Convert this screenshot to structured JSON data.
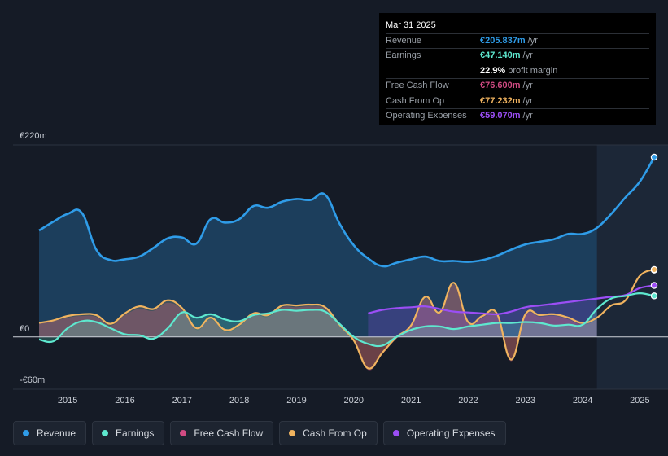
{
  "tooltip": {
    "date": "Mar 31 2025",
    "rows": [
      {
        "label": "Revenue",
        "value": "€205.837m",
        "unit": "/yr",
        "color": "#2f9ce8"
      },
      {
        "label": "Earnings",
        "value": "€47.140m",
        "unit": "/yr",
        "color": "#5ee8cf"
      },
      {
        "label": "",
        "value": "22.9%",
        "unit": "profit margin",
        "color": "#ffffff"
      },
      {
        "label": "Free Cash Flow",
        "value": "€76.600m",
        "unit": "/yr",
        "color": "#d14b83"
      },
      {
        "label": "Cash From Op",
        "value": "€77.232m",
        "unit": "/yr",
        "color": "#f0b35f"
      },
      {
        "label": "Operating Expenses",
        "value": "€59.070m",
        "unit": "/yr",
        "color": "#9b4ef5"
      }
    ]
  },
  "legend": [
    {
      "label": "Revenue",
      "color": "#2f9ce8"
    },
    {
      "label": "Earnings",
      "color": "#5ee8cf"
    },
    {
      "label": "Free Cash Flow",
      "color": "#d14b83"
    },
    {
      "label": "Cash From Op",
      "color": "#f0b35f"
    },
    {
      "label": "Operating Expenses",
      "color": "#9b4ef5"
    }
  ],
  "chart_data": {
    "type": "area",
    "title": "",
    "xlabel": "",
    "ylabel": "",
    "ylim": [
      -60,
      220
    ],
    "xlim": [
      2014.5,
      2025.25
    ],
    "y_tick_labels": [
      {
        "value": 220,
        "label": "€220m"
      },
      {
        "value": 0,
        "label": "€0"
      },
      {
        "value": -60,
        "label": "-€60m"
      }
    ],
    "x_tick_labels": [
      "2015",
      "2016",
      "2017",
      "2018",
      "2019",
      "2020",
      "2021",
      "2022",
      "2023",
      "2024",
      "2025"
    ],
    "highlight_start": 2024.25,
    "series": [
      {
        "name": "Revenue",
        "color": "#2f9ce8",
        "x": [
          2014.5,
          2014.75,
          2015.0,
          2015.25,
          2015.5,
          2015.75,
          2016.0,
          2016.25,
          2016.5,
          2016.75,
          2017.0,
          2017.25,
          2017.5,
          2017.75,
          2018.0,
          2018.25,
          2018.5,
          2018.75,
          2019.0,
          2019.25,
          2019.5,
          2019.75,
          2020.0,
          2020.25,
          2020.5,
          2020.75,
          2021.0,
          2021.25,
          2021.5,
          2021.75,
          2022.0,
          2022.25,
          2022.5,
          2022.75,
          2023.0,
          2023.25,
          2023.5,
          2023.75,
          2024.0,
          2024.25,
          2024.5,
          2024.75,
          2025.0,
          2025.25
        ],
        "values": [
          122,
          132,
          141,
          142,
          100,
          88,
          89,
          92,
          102,
          113,
          114,
          107,
          135,
          131,
          135,
          150,
          148,
          155,
          158,
          157,
          163,
          130,
          105,
          90,
          81,
          85,
          89,
          92,
          87,
          87,
          86,
          88,
          93,
          100,
          106,
          109,
          112,
          118,
          118,
          125,
          141,
          160,
          178,
          206
        ]
      },
      {
        "name": "Earnings",
        "color": "#5ee8cf",
        "x": [
          2014.5,
          2014.75,
          2015.0,
          2015.25,
          2015.5,
          2015.75,
          2016.0,
          2016.25,
          2016.5,
          2016.75,
          2017.0,
          2017.25,
          2017.5,
          2017.75,
          2018.0,
          2018.25,
          2018.5,
          2018.75,
          2019.0,
          2019.25,
          2019.5,
          2019.75,
          2020.0,
          2020.25,
          2020.5,
          2020.75,
          2021.0,
          2021.25,
          2021.5,
          2021.75,
          2022.0,
          2022.25,
          2022.5,
          2022.75,
          2023.0,
          2023.25,
          2023.5,
          2023.75,
          2024.0,
          2024.25,
          2024.5,
          2024.75,
          2025.0,
          2025.25
        ],
        "values": [
          -3,
          -5,
          10,
          18,
          17,
          10,
          3,
          2,
          -2,
          10,
          28,
          22,
          26,
          20,
          18,
          25,
          27,
          31,
          30,
          31,
          29,
          15,
          0,
          -8,
          -10,
          0,
          8,
          12,
          12,
          9,
          12,
          14,
          16,
          16,
          17,
          16,
          13,
          14,
          14,
          32,
          44,
          47,
          50,
          47
        ]
      },
      {
        "name": "Free Cash Flow",
        "color": "#d14b83",
        "x": [
          2014.5,
          2014.75,
          2015.0,
          2015.25,
          2015.5,
          2015.75,
          2016.0,
          2016.25,
          2016.5,
          2016.75,
          2017.0,
          2017.25,
          2017.5,
          2017.75,
          2018.0,
          2018.25,
          2018.5,
          2018.75,
          2019.0,
          2019.25,
          2019.5,
          2019.75,
          2020.0,
          2020.25,
          2020.5,
          2020.75,
          2021.0,
          2021.25,
          2021.5,
          2021.75,
          2022.0,
          2022.25,
          2022.5,
          2022.75,
          2023.0,
          2023.25,
          2023.5,
          2023.75,
          2024.0,
          2024.25,
          2024.5,
          2024.75,
          2025.0,
          2025.25
        ],
        "values": [
          15,
          18,
          22,
          24,
          23,
          13,
          25,
          32,
          30,
          39,
          31,
          8,
          20,
          6,
          12,
          25,
          23,
          34,
          34,
          35,
          32,
          12,
          -5,
          -38,
          -20,
          -2,
          11,
          44,
          26,
          60,
          15,
          22,
          25,
          -28,
          24,
          23,
          24,
          20,
          14,
          20,
          34,
          40,
          68,
          76.6
        ]
      },
      {
        "name": "Cash From Op",
        "color": "#f0b35f",
        "x": [
          2014.5,
          2014.75,
          2015.0,
          2015.25,
          2015.5,
          2015.75,
          2016.0,
          2016.25,
          2016.5,
          2016.75,
          2017.0,
          2017.25,
          2017.5,
          2017.75,
          2018.0,
          2018.25,
          2018.5,
          2018.75,
          2019.0,
          2019.25,
          2019.5,
          2019.75,
          2020.0,
          2020.25,
          2020.5,
          2020.75,
          2021.0,
          2021.25,
          2021.5,
          2021.75,
          2022.0,
          2022.25,
          2022.5,
          2022.75,
          2023.0,
          2023.25,
          2023.5,
          2023.75,
          2024.0,
          2024.25,
          2024.5,
          2024.75,
          2025.0,
          2025.25
        ],
        "values": [
          16,
          19,
          24,
          26,
          25,
          15,
          27,
          35,
          32,
          42,
          33,
          10,
          22,
          8,
          14,
          27,
          25,
          36,
          36,
          37,
          34,
          14,
          -4,
          -36,
          -18,
          0,
          13,
          46,
          28,
          62,
          17,
          24,
          27,
          -26,
          26,
          25,
          26,
          22,
          16,
          22,
          36,
          42,
          70,
          77.2
        ]
      },
      {
        "name": "Operating Expenses",
        "color": "#9b4ef5",
        "x": [
          2020.25,
          2020.5,
          2020.75,
          2021.0,
          2021.25,
          2021.5,
          2021.75,
          2022.0,
          2022.25,
          2022.5,
          2022.75,
          2023.0,
          2023.25,
          2023.5,
          2023.75,
          2024.0,
          2024.25,
          2024.5,
          2024.75,
          2025.0,
          2025.25
        ],
        "values": [
          27,
          31,
          33,
          34,
          35,
          32,
          29,
          28,
          27,
          26,
          29,
          34,
          36,
          38,
          40,
          42,
          44,
          46,
          48,
          56,
          59
        ]
      }
    ]
  }
}
